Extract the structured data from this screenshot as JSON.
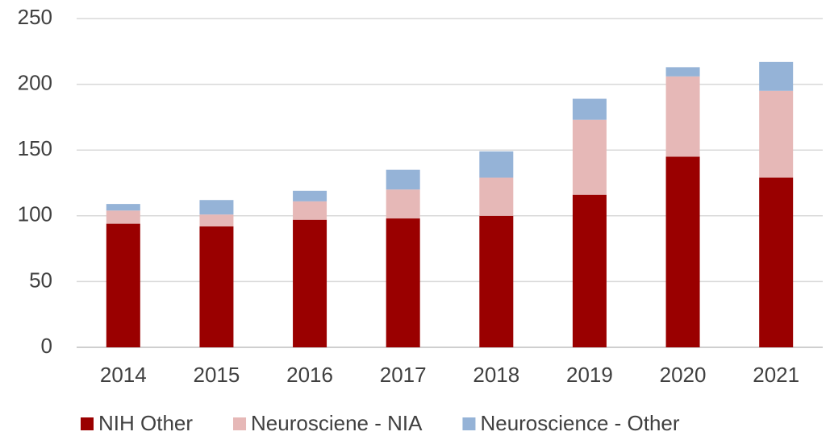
{
  "chart_data": {
    "type": "stacked_bar",
    "categories": [
      "2014",
      "2015",
      "2016",
      "2017",
      "2018",
      "2019",
      "2020",
      "2021"
    ],
    "series": [
      {
        "name": "NIH Other",
        "color": "#9a0000",
        "values": [
          94,
          92,
          97,
          98,
          100,
          116,
          145,
          129
        ]
      },
      {
        "name": "Neurosciene - NIA",
        "color": "#e6b8b7",
        "values": [
          10,
          9,
          14,
          22,
          29,
          57,
          61,
          66
        ]
      },
      {
        "name": "Neuroscience - Other",
        "color": "#95b3d7",
        "values": [
          5,
          11,
          8,
          15,
          20,
          16,
          7,
          22
        ]
      }
    ],
    "ylim": [
      0,
      250
    ],
    "yticks": [
      0,
      50,
      100,
      150,
      200,
      250
    ],
    "grid": true,
    "legend": "bottom"
  }
}
